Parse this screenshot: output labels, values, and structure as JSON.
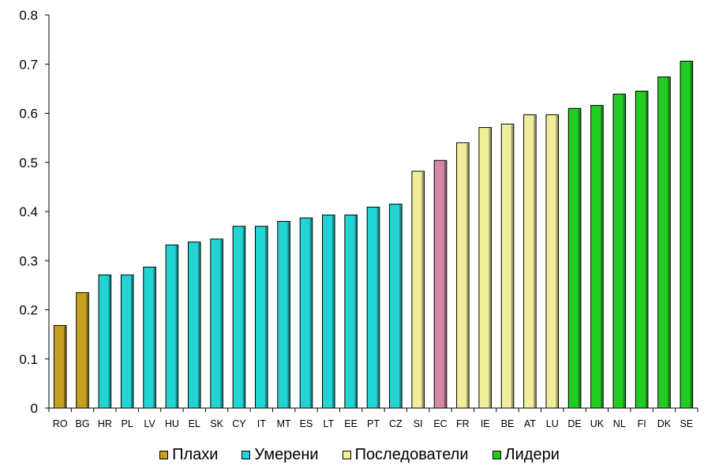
{
  "chart_data": {
    "type": "bar",
    "categories": [
      "RO",
      "BG",
      "HR",
      "PL",
      "LV",
      "HU",
      "EL",
      "SK",
      "CY",
      "IT",
      "MT",
      "ES",
      "LT",
      "EE",
      "PT",
      "CZ",
      "SI",
      "EC",
      "FR",
      "IE",
      "BE",
      "AT",
      "LU",
      "DE",
      "UK",
      "NL",
      "FI",
      "DK",
      "SE"
    ],
    "values": [
      0.168,
      0.235,
      0.271,
      0.271,
      0.287,
      0.332,
      0.338,
      0.344,
      0.37,
      0.37,
      0.38,
      0.387,
      0.393,
      0.393,
      0.409,
      0.415,
      0.482,
      0.504,
      0.54,
      0.571,
      0.578,
      0.597,
      0.597,
      0.61,
      0.616,
      0.639,
      0.645,
      0.674,
      0.706
    ],
    "groups": [
      "Плахи",
      "Плахи",
      "Умерени",
      "Умерени",
      "Умерени",
      "Умерени",
      "Умерени",
      "Умерени",
      "Умерени",
      "Умерени",
      "Умерени",
      "Умерени",
      "Умерени",
      "Умерени",
      "Умерени",
      "Умерени",
      "Последователи",
      "EC",
      "Последователи",
      "Последователи",
      "Последователи",
      "Последователи",
      "Последователи",
      "Лидери",
      "Лидери",
      "Лидери",
      "Лидери",
      "Лидери",
      "Лидери"
    ],
    "ylim": [
      0,
      0.8
    ],
    "yticks": [
      "0",
      "0.1",
      "0.2",
      "0.3",
      "0.4",
      "0.5",
      "0.6",
      "0.7",
      "0.8"
    ],
    "grid": false,
    "legend_position": "bottom",
    "legend": [
      {
        "name": "Плахи",
        "color": "#c8a020"
      },
      {
        "name": "Умерени",
        "color": "#22d4d4"
      },
      {
        "name": "Последователи",
        "color": "#f0ee9a"
      },
      {
        "name": "Лидери",
        "color": "#22cc22"
      }
    ],
    "colors": {
      "Плахи": "#c8a020",
      "Умерени": "#22d4d4",
      "Последователи": "#f0ee9a",
      "Лидери": "#22cc22",
      "EC": "#d489a8"
    }
  }
}
